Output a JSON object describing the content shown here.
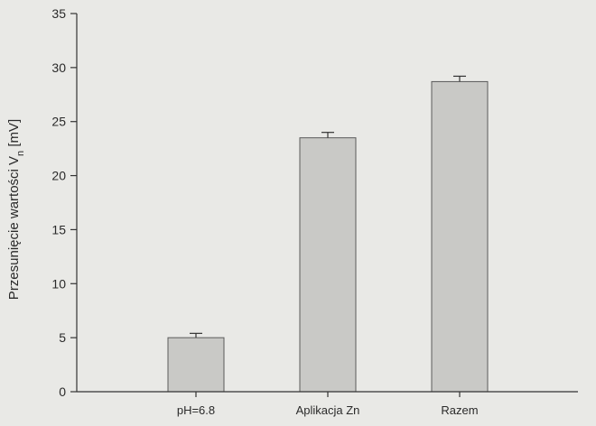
{
  "chart_data": {
    "type": "bar",
    "title": "",
    "xlabel": "",
    "ylabel_main": "Przesunięcie wartości V",
    "ylabel_sub": "n",
    "ylabel_unit": " [mV]",
    "categories": [
      "pH=6.8",
      "Aplikacja Zn",
      "Razem"
    ],
    "values": [
      5.0,
      23.5,
      28.7
    ],
    "errors": [
      0.4,
      0.5,
      0.5
    ],
    "ylim": [
      0,
      35
    ],
    "yticks": [
      0,
      5,
      10,
      15,
      20,
      25,
      30,
      35
    ],
    "grid": false,
    "colors": {
      "bar": "#c9c9c6",
      "bar_edge": "#5a5a5a",
      "axis": "#333333",
      "background": "#e9e9e6"
    }
  }
}
